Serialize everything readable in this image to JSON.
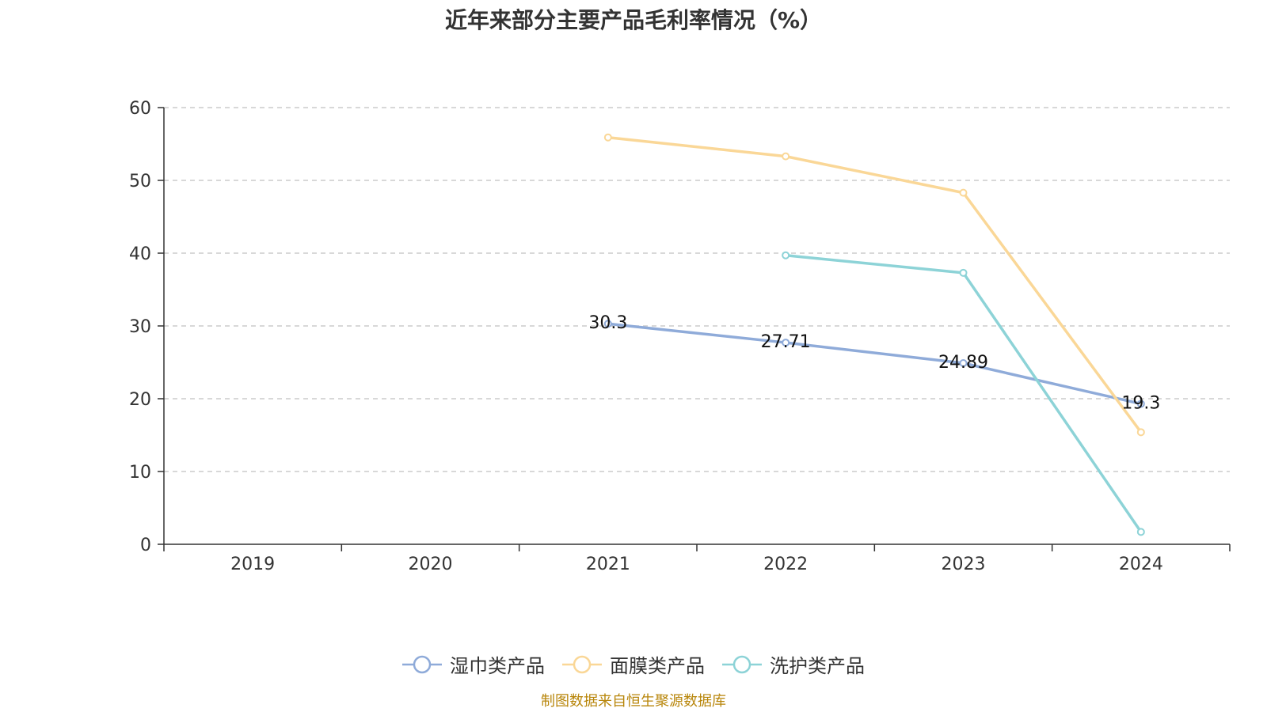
{
  "chart_data": {
    "type": "line",
    "title": "近年来部分主要产品毛利率情况（%）",
    "categories": [
      "2019",
      "2020",
      "2021",
      "2022",
      "2023",
      "2024"
    ],
    "ylim": [
      0,
      60
    ],
    "yticks": [
      "0",
      "10",
      "20",
      "30",
      "40",
      "50",
      "60"
    ],
    "grid": true,
    "legend_position": "bottom",
    "series": [
      {
        "name": "湿巾类产品",
        "color": "#8fabd9",
        "values": [
          null,
          null,
          30.3,
          27.71,
          24.89,
          19.3
        ],
        "labels": [
          "",
          "",
          "30.3",
          "27.71",
          "24.89",
          "19.3"
        ]
      },
      {
        "name": "面膜类产品",
        "color": "#fad797",
        "values": [
          null,
          null,
          55.9,
          53.3,
          48.3,
          15.4
        ],
        "labels": [
          "",
          "",
          "",
          "",
          "",
          ""
        ]
      },
      {
        "name": "洗护类产品",
        "color": "#8dd3d7",
        "values": [
          null,
          null,
          null,
          39.7,
          37.3,
          1.7
        ],
        "labels": [
          "",
          "",
          "",
          "",
          "",
          ""
        ]
      }
    ]
  },
  "source_note": "制图数据来自恒生聚源数据库"
}
